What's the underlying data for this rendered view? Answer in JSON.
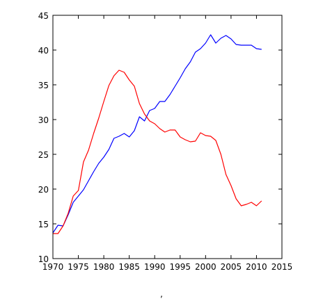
{
  "caption": ",",
  "chart_data": {
    "type": "line",
    "title": "",
    "xlabel": "",
    "ylabel": "",
    "xlim": [
      1970,
      2015
    ],
    "ylim": [
      10,
      45
    ],
    "xticks": [
      1970,
      1975,
      1980,
      1985,
      1990,
      1995,
      2000,
      2005,
      2010,
      2015
    ],
    "yticks": [
      10,
      15,
      20,
      25,
      30,
      35,
      40,
      45
    ],
    "grid": false,
    "legend": "none",
    "series": [
      {
        "color": "#0000ff",
        "x": [
          1970,
          1971,
          1972,
          1973,
          1974,
          1975,
          1976,
          1977,
          1978,
          1979,
          1980,
          1981,
          1982,
          1983,
          1984,
          1985,
          1986,
          1987,
          1988,
          1989,
          1990,
          1991,
          1992,
          1993,
          1994,
          1995,
          1996,
          1997,
          1998,
          1999,
          2000,
          2001,
          2002,
          2003,
          2004,
          2005,
          2006,
          2007,
          2008,
          2009,
          2010,
          2011
        ],
        "y": [
          13.7,
          14.8,
          14.7,
          16.3,
          18.1,
          19.0,
          19.9,
          21.2,
          22.5,
          23.7,
          24.6,
          25.7,
          27.3,
          27.6,
          28.0,
          27.5,
          28.4,
          30.4,
          29.8,
          31.3,
          31.6,
          32.6,
          32.6,
          33.6,
          34.8,
          36.0,
          37.3,
          38.3,
          39.7,
          40.2,
          41.0,
          42.2,
          41.0,
          41.7,
          42.1,
          41.6,
          40.8,
          40.7,
          40.7,
          40.7,
          40.2,
          40.1
        ]
      },
      {
        "color": "#ff0000",
        "x": [
          1970,
          1971,
          1972,
          1973,
          1974,
          1975,
          1976,
          1977,
          1978,
          1979,
          1980,
          1981,
          1982,
          1983,
          1984,
          1985,
          1986,
          1987,
          1988,
          1989,
          1990,
          1991,
          1992,
          1993,
          1994,
          1995,
          1996,
          1997,
          1998,
          1999,
          2000,
          2001,
          2002,
          2003,
          2004,
          2005,
          2006,
          2007,
          2008,
          2009,
          2010,
          2011
        ],
        "y": [
          13.6,
          13.6,
          14.7,
          16.5,
          19.0,
          19.8,
          23.9,
          25.6,
          28.0,
          30.2,
          32.6,
          34.9,
          36.3,
          37.1,
          36.8,
          35.7,
          34.8,
          32.3,
          30.8,
          29.8,
          29.4,
          28.7,
          28.2,
          28.5,
          28.5,
          27.5,
          27.1,
          26.8,
          26.9,
          28.1,
          27.7,
          27.6,
          27.0,
          25.0,
          22.1,
          20.5,
          18.6,
          17.6,
          17.8,
          18.1,
          17.6,
          18.3
        ]
      }
    ]
  }
}
